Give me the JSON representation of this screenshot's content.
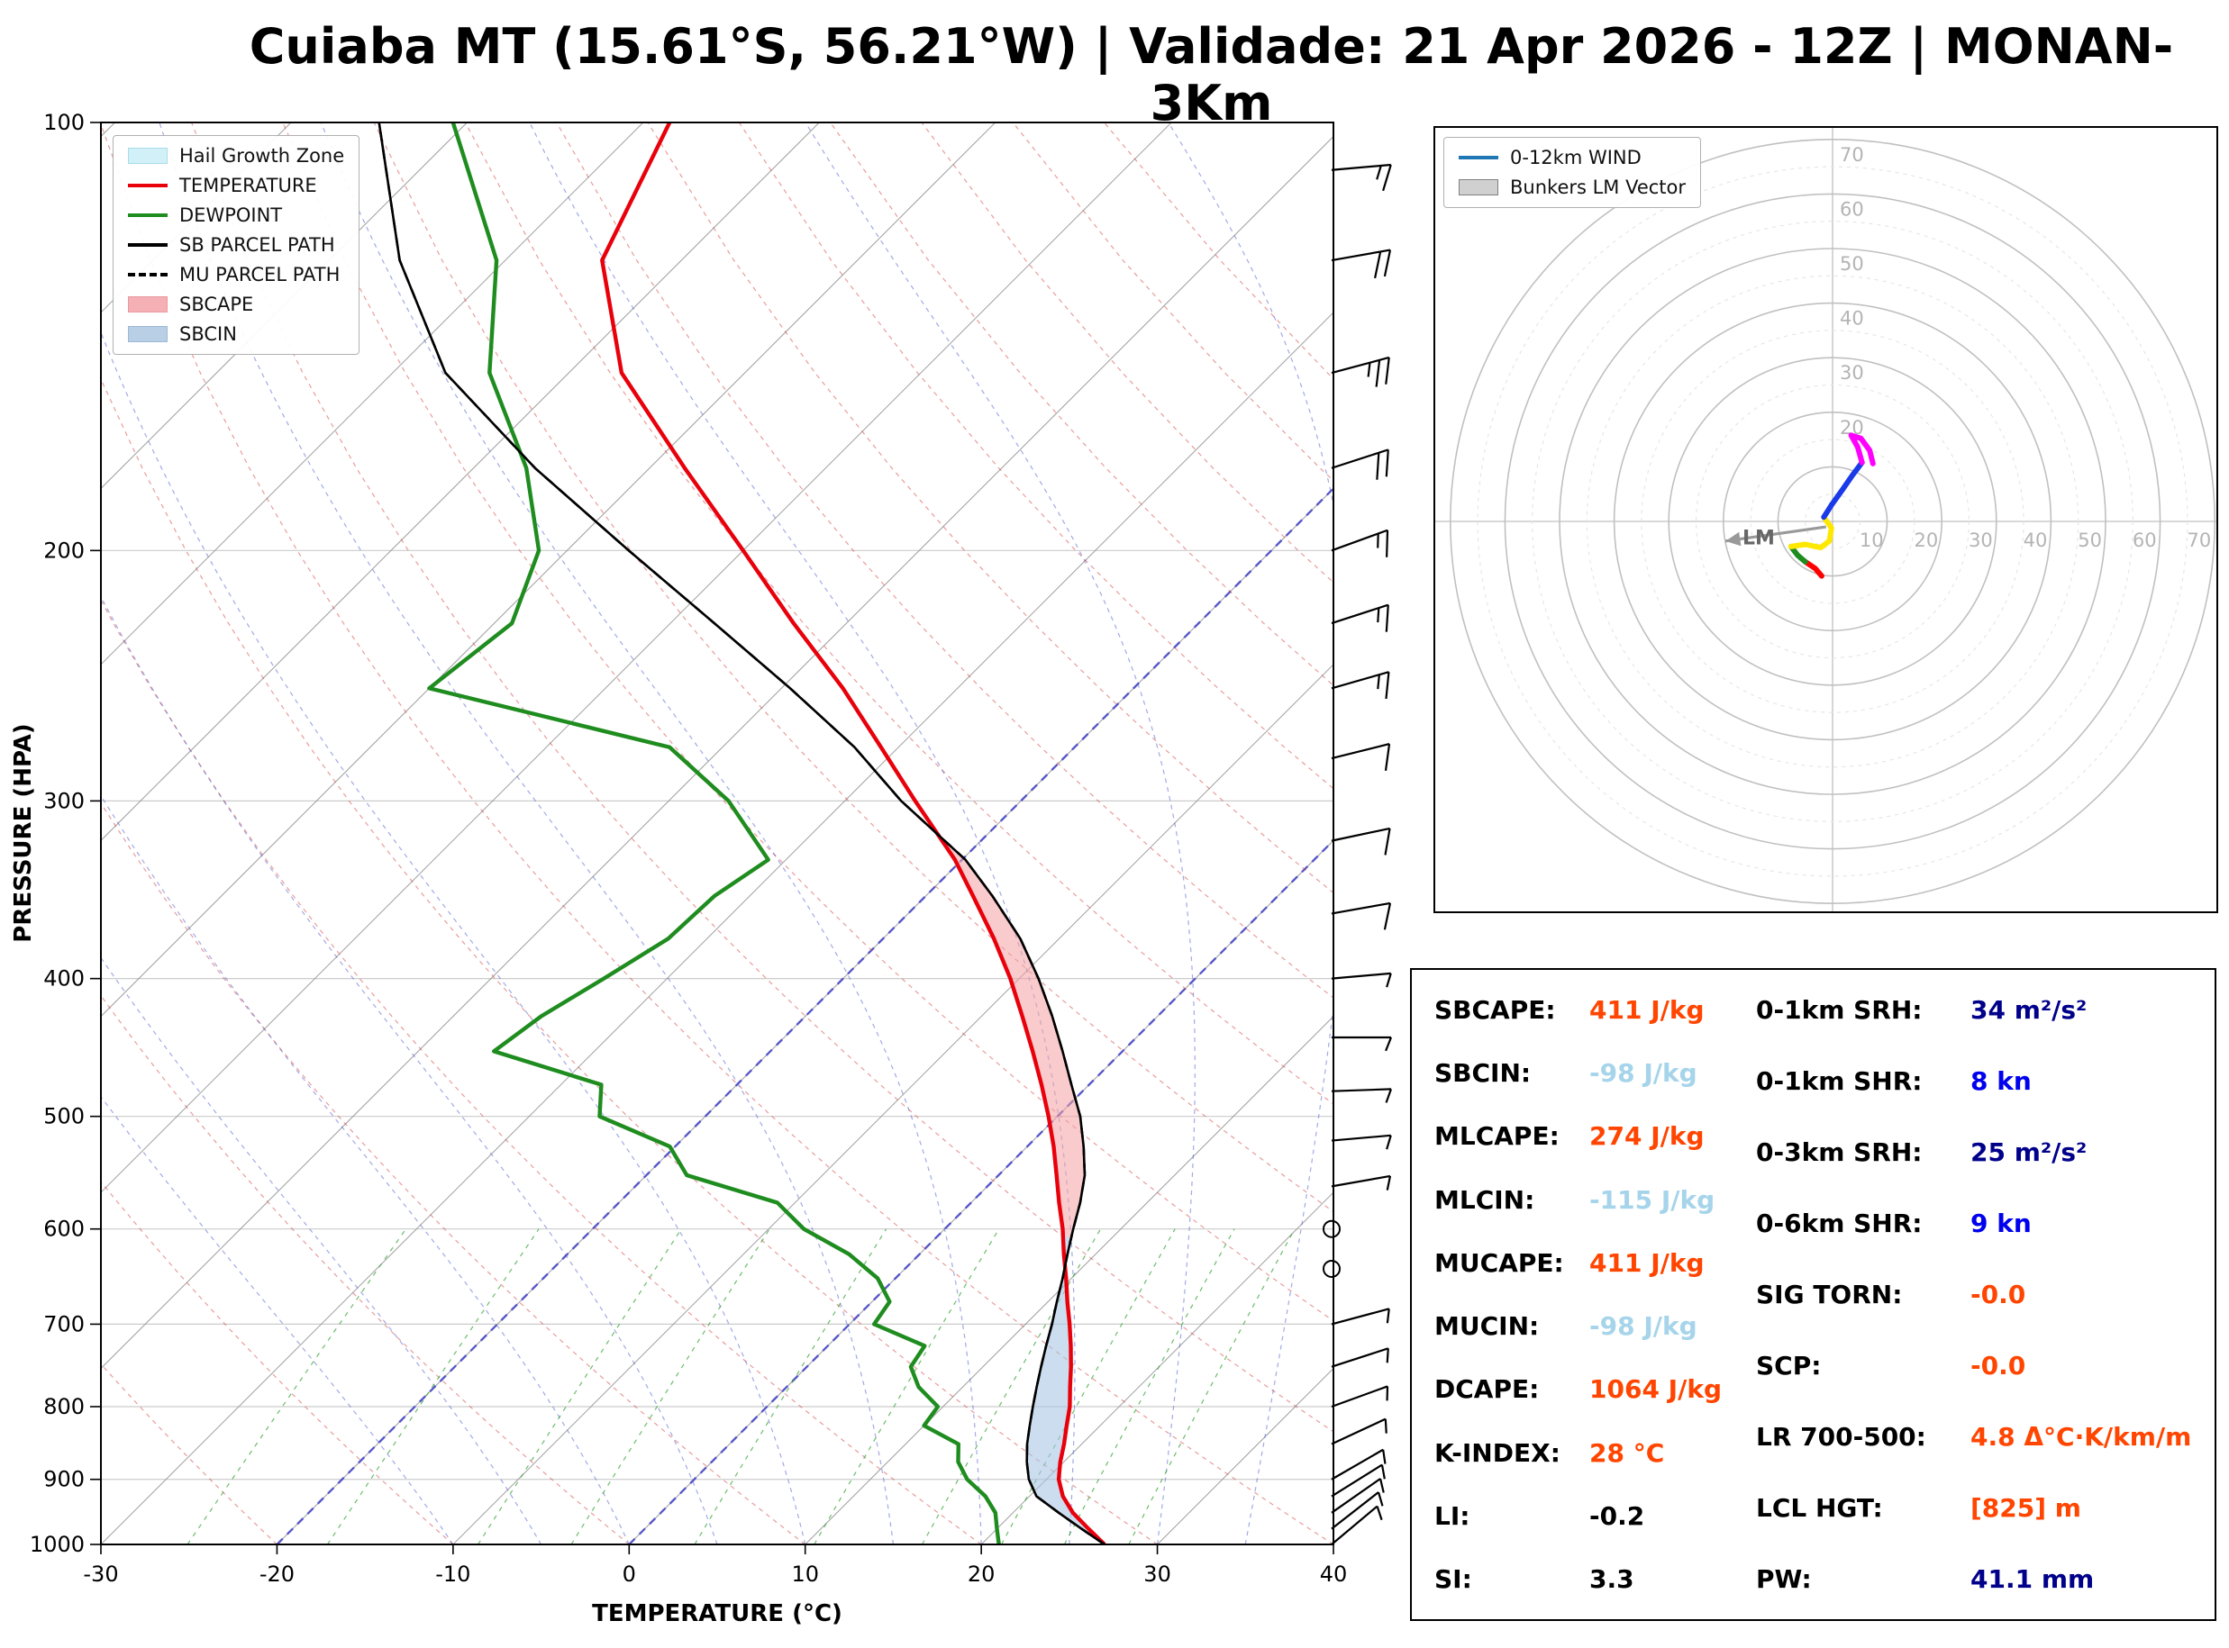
{
  "title": "Cuiaba MT (15.61°S, 56.21°W) | Validade: 21 Apr 2026 - 12Z | MONAN-3Km",
  "skewt": {
    "xlabel": "TEMPERATURE (°C)",
    "ylabel": "PRESSURE (HPA)",
    "x_ticks": [
      -30,
      -20,
      -10,
      0,
      10,
      20,
      30,
      40
    ],
    "p_ticks": [
      100,
      200,
      300,
      400,
      500,
      600,
      700,
      800,
      900,
      1000
    ],
    "legend": [
      {
        "type": "patch",
        "color": "#d2f0f7",
        "border": "#a8dde9",
        "label": "Hail Growth Zone"
      },
      {
        "type": "line",
        "color": "#e8000b",
        "label": "TEMPERATURE"
      },
      {
        "type": "line",
        "color": "#1e8c1e",
        "label": "DEWPOINT"
      },
      {
        "type": "line",
        "color": "#000000",
        "label": "SB PARCEL PATH"
      },
      {
        "type": "dline",
        "color": "#000000",
        "label": "MU PARCEL PATH"
      },
      {
        "type": "patch",
        "color": "#f4b0b4",
        "border": "#e89aa0",
        "label": "SBCAPE"
      },
      {
        "type": "patch",
        "color": "#b8cfe6",
        "border": "#9db9d6",
        "label": "SBCIN"
      }
    ],
    "colors": {
      "temperature": "#e8000b",
      "dewpoint": "#1e8c1e",
      "parcel": "#000000",
      "cape_fill": "#f4a0a4",
      "cin_fill": "#a8c6e2",
      "hail_fill": "#d9f4f9",
      "isotherm": "#909090",
      "isotherm_highlight": "#4444c8",
      "dry_adiabat": "#d33a3a",
      "moist_adiabat": "#4455cc",
      "mixing_ratio": "#2ca02c",
      "grid": "#cccccc",
      "wind_barb": "#000000"
    }
  },
  "chart_data": [
    {
      "type": "line",
      "title": "Skew-T Log-P sounding",
      "xlabel": "TEMPERATURE (°C)",
      "ylabel": "PRESSURE (HPA)",
      "xlim": [
        -30,
        40
      ],
      "plim": [
        100,
        1000
      ],
      "pressure_hpa": [
        1000,
        975,
        950,
        925,
        900,
        875,
        850,
        825,
        800,
        775,
        750,
        725,
        700,
        675,
        650,
        625,
        600,
        575,
        550,
        525,
        500,
        475,
        450,
        425,
        400,
        375,
        350,
        330,
        300,
        275,
        250,
        225,
        200,
        175,
        150,
        125,
        100
      ],
      "temperature_c": [
        27.0,
        25.2,
        23.4,
        21.9,
        20.7,
        19.8,
        19.0,
        18.1,
        17.2,
        16.1,
        15.0,
        13.8,
        12.5,
        11.1,
        9.7,
        8.2,
        6.7,
        5.0,
        3.3,
        1.5,
        -0.5,
        -2.7,
        -5.1,
        -7.7,
        -10.5,
        -13.7,
        -17.3,
        -20.4,
        -26.0,
        -31.0,
        -36.5,
        -43.0,
        -50.0,
        -58.0,
        -67.0,
        -74.5,
        -78.5
      ],
      "dewpoint_c": [
        21.0,
        20.0,
        19.0,
        17.5,
        15.5,
        14.0,
        13.0,
        10.0,
        9.7,
        7.5,
        5.9,
        5.5,
        1.4,
        1.0,
        -1.0,
        -4.0,
        -8.0,
        -11.0,
        -17.7,
        -20.3,
        -26.0,
        -27.7,
        -35.7,
        -35.0,
        -33.6,
        -32.2,
        -32.0,
        -31.0,
        -36.6,
        -43.0,
        -60.0,
        -59.0,
        -61.6,
        -67.0,
        -74.5,
        -80.5,
        -90.8
      ],
      "sb_parcel_c": [
        27.0,
        24.8,
        22.6,
        20.4,
        19.0,
        17.9,
        16.9,
        16.0,
        15.1,
        14.2,
        13.3,
        12.4,
        11.5,
        10.5,
        9.5,
        8.4,
        7.3,
        6.2,
        4.9,
        3.2,
        1.3,
        -1.0,
        -3.4,
        -6.0,
        -8.9,
        -12.2,
        -16.2,
        -19.8,
        -26.8,
        -32.5,
        -39.5,
        -47.5,
        -56.5,
        -66.5,
        -77.0,
        -86.0,
        -95.0
      ],
      "mu_parcel_same_as_sb": true,
      "lfc_p": 608,
      "el_p": 318,
      "hail_zone_p": [
        590,
        362
      ],
      "mixing_ratio_lines_gkg": [
        0.5,
        1,
        2,
        3,
        5,
        8,
        12,
        16,
        20,
        25
      ],
      "winds_p_dir_kn": [
        [
          1000,
          50,
          4
        ],
        [
          975,
          52,
          5
        ],
        [
          950,
          55,
          5
        ],
        [
          925,
          58,
          6
        ],
        [
          900,
          60,
          5
        ],
        [
          850,
          65,
          7
        ],
        [
          800,
          70,
          6
        ],
        [
          750,
          72,
          7
        ],
        [
          700,
          75,
          5
        ],
        [
          640,
          0,
          0
        ],
        [
          600,
          0,
          0
        ],
        [
          560,
          80,
          3
        ],
        [
          520,
          85,
          4
        ],
        [
          480,
          88,
          5
        ],
        [
          440,
          90,
          6
        ],
        [
          400,
          85,
          7
        ],
        [
          360,
          80,
          8
        ],
        [
          320,
          78,
          9
        ],
        [
          280,
          76,
          11
        ],
        [
          250,
          74,
          13
        ],
        [
          225,
          72,
          15
        ],
        [
          200,
          70,
          17
        ],
        [
          175,
          72,
          20
        ],
        [
          150,
          75,
          27
        ],
        [
          125,
          80,
          21
        ],
        [
          108,
          85,
          15
        ]
      ]
    },
    {
      "type": "line",
      "title": "Hodograph (kn)",
      "rings_kn": [
        10,
        20,
        30,
        40,
        50,
        60,
        70
      ],
      "ring_labels_vertical": [
        20,
        30,
        40,
        50,
        60,
        70
      ],
      "ring_labels_horizontal": [
        10,
        20,
        30,
        40,
        50,
        60,
        70
      ],
      "segments": [
        {
          "color": "#ff0000",
          "points": [
            [
              -2.0,
              -10.0
            ],
            [
              -3.2,
              -8.6
            ],
            [
              -5.0,
              -7.4
            ]
          ]
        },
        {
          "color": "#1e8c1e",
          "points": [
            [
              -5.0,
              -7.4
            ],
            [
              -6.4,
              -6.2
            ],
            [
              -7.6,
              -4.6
            ]
          ]
        },
        {
          "color": "#ffe800",
          "points": [
            [
              -7.6,
              -4.6
            ],
            [
              -5.0,
              -4.2
            ],
            [
              -2.2,
              -4.8
            ],
            [
              -0.6,
              -3.6
            ],
            [
              -0.2,
              -1.2
            ],
            [
              -1.6,
              0.8
            ]
          ]
        },
        {
          "color": "#1a3ae8",
          "points": [
            [
              -1.6,
              0.8
            ],
            [
              -0.2,
              3.0
            ],
            [
              1.8,
              5.8
            ],
            [
              3.6,
              8.4
            ],
            [
              5.4,
              10.8
            ]
          ]
        },
        {
          "color": "#ff00ff",
          "points": [
            [
              5.4,
              10.8
            ],
            [
              4.6,
              13.6
            ],
            [
              3.4,
              15.8
            ],
            [
              5.2,
              15.2
            ],
            [
              6.8,
              13.0
            ],
            [
              7.4,
              10.6
            ]
          ]
        }
      ],
      "bunkers_lm_vector_kn": {
        "from": [
          -1.2,
          -1.0
        ],
        "to": [
          -19.6,
          -3.6
        ]
      },
      "lm_label": "LM"
    }
  ],
  "hodograph": {
    "legend": [
      {
        "type": "line",
        "color": "#1f77b4",
        "label": "0-12km WIND"
      },
      {
        "type": "patch",
        "color": "#d0d0d0",
        "border": "#808080",
        "label": "Bunkers LM Vector"
      }
    ]
  },
  "table": {
    "left": [
      {
        "label": "SBCAPE:",
        "value": "411 J/kg",
        "color": "#ff4500"
      },
      {
        "label": "SBCIN:",
        "value": "-98 J/kg",
        "color": "#a6d4ea"
      },
      {
        "label": "MLCAPE:",
        "value": "274 J/kg",
        "color": "#ff4500"
      },
      {
        "label": "MLCIN:",
        "value": "-115 J/kg",
        "color": "#a6d4ea"
      },
      {
        "label": "MUCAPE:",
        "value": "411 J/kg",
        "color": "#ff4500"
      },
      {
        "label": "MUCIN:",
        "value": "-98 J/kg",
        "color": "#a6d4ea"
      },
      {
        "label": "DCAPE:",
        "value": "1064 J/kg",
        "color": "#ff4500"
      },
      {
        "label": "K-INDEX:",
        "value": "28 °C",
        "color": "#ff4500"
      },
      {
        "label": "LI:",
        "value": "-0.2",
        "color": "#000000"
      },
      {
        "label": "SI:",
        "value": "3.3",
        "color": "#000000"
      }
    ],
    "right": [
      {
        "label": "0-1km SRH:",
        "value": "34 m²/s²",
        "color": "#00008b"
      },
      {
        "label": "0-1km SHR:",
        "value": "8 kn",
        "color": "#0000ee"
      },
      {
        "label": "0-3km SRH:",
        "value": "25 m²/s²",
        "color": "#00008b"
      },
      {
        "label": "0-6km SHR:",
        "value": "9 kn",
        "color": "#0000ee"
      },
      {
        "label": "SIG TORN:",
        "value": "-0.0",
        "color": "#ff4500"
      },
      {
        "label": "SCP:",
        "value": "-0.0",
        "color": "#ff4500"
      },
      {
        "label": "LR 700-500:",
        "value": "4.8 Δ°C·K/km/m",
        "color": "#ff4500"
      },
      {
        "label": "LCL HGT:",
        "value": "[825] m",
        "color": "#ff4500"
      },
      {
        "label": "PW:",
        "value": "41.1 mm",
        "color": "#00008b"
      }
    ]
  }
}
